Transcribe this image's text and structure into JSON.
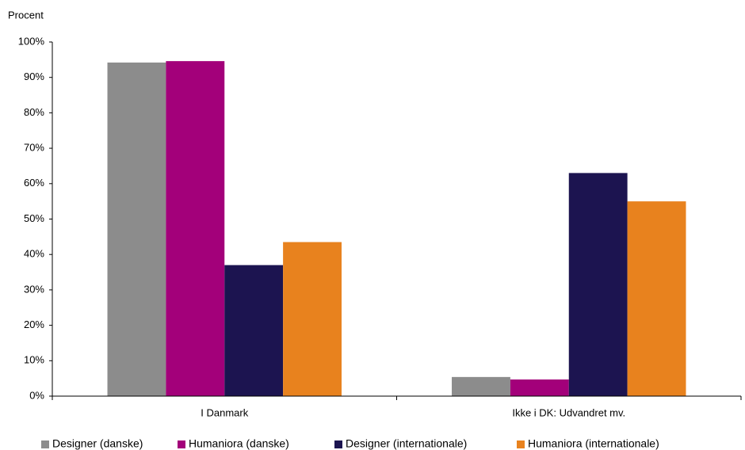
{
  "chart_data": {
    "type": "bar",
    "y_label": "Procent",
    "categories": [
      "I Danmark",
      "Ikke i DK: Udvandret mv."
    ],
    "series": [
      {
        "name": "Designer (danske)",
        "color": "#8c8c8c",
        "values": [
          94.2,
          5.4
        ]
      },
      {
        "name": "Humaniora (danske)",
        "color": "#a3007a",
        "values": [
          94.6,
          4.7
        ]
      },
      {
        "name": "Designer (internationale)",
        "color": "#1c1450",
        "values": [
          37,
          63
        ]
      },
      {
        "name": "Humaniora (internationale)",
        "color": "#e8821e",
        "values": [
          43.5,
          55
        ]
      }
    ],
    "ylim": [
      0,
      100
    ],
    "yticks": [
      {
        "value": 0,
        "label": "0%"
      },
      {
        "value": 10,
        "label": "10%"
      },
      {
        "value": 20,
        "label": "20%"
      },
      {
        "value": 30,
        "label": "30%"
      },
      {
        "value": 40,
        "label": "40%"
      },
      {
        "value": 50,
        "label": "50%"
      },
      {
        "value": 60,
        "label": "60%"
      },
      {
        "value": 70,
        "label": "70%"
      },
      {
        "value": 80,
        "label": "80%"
      },
      {
        "value": 90,
        "label": "90%"
      },
      {
        "value": 100,
        "label": "100%"
      }
    ],
    "grid": false,
    "legend": "bottom"
  }
}
